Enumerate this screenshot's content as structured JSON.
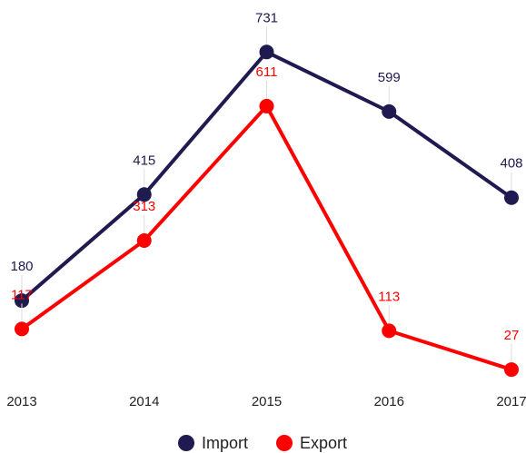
{
  "chart_data": {
    "type": "line",
    "categories": [
      "2013",
      "2014",
      "2015",
      "2016",
      "2017"
    ],
    "series": [
      {
        "name": "Import",
        "color": "#1f1a4f",
        "values": [
          180,
          415,
          731,
          599,
          408
        ]
      },
      {
        "name": "Export",
        "color": "#ff0000",
        "values": [
          117,
          313,
          611,
          113,
          27
        ]
      }
    ],
    "ylim": [
      0,
      800
    ]
  }
}
